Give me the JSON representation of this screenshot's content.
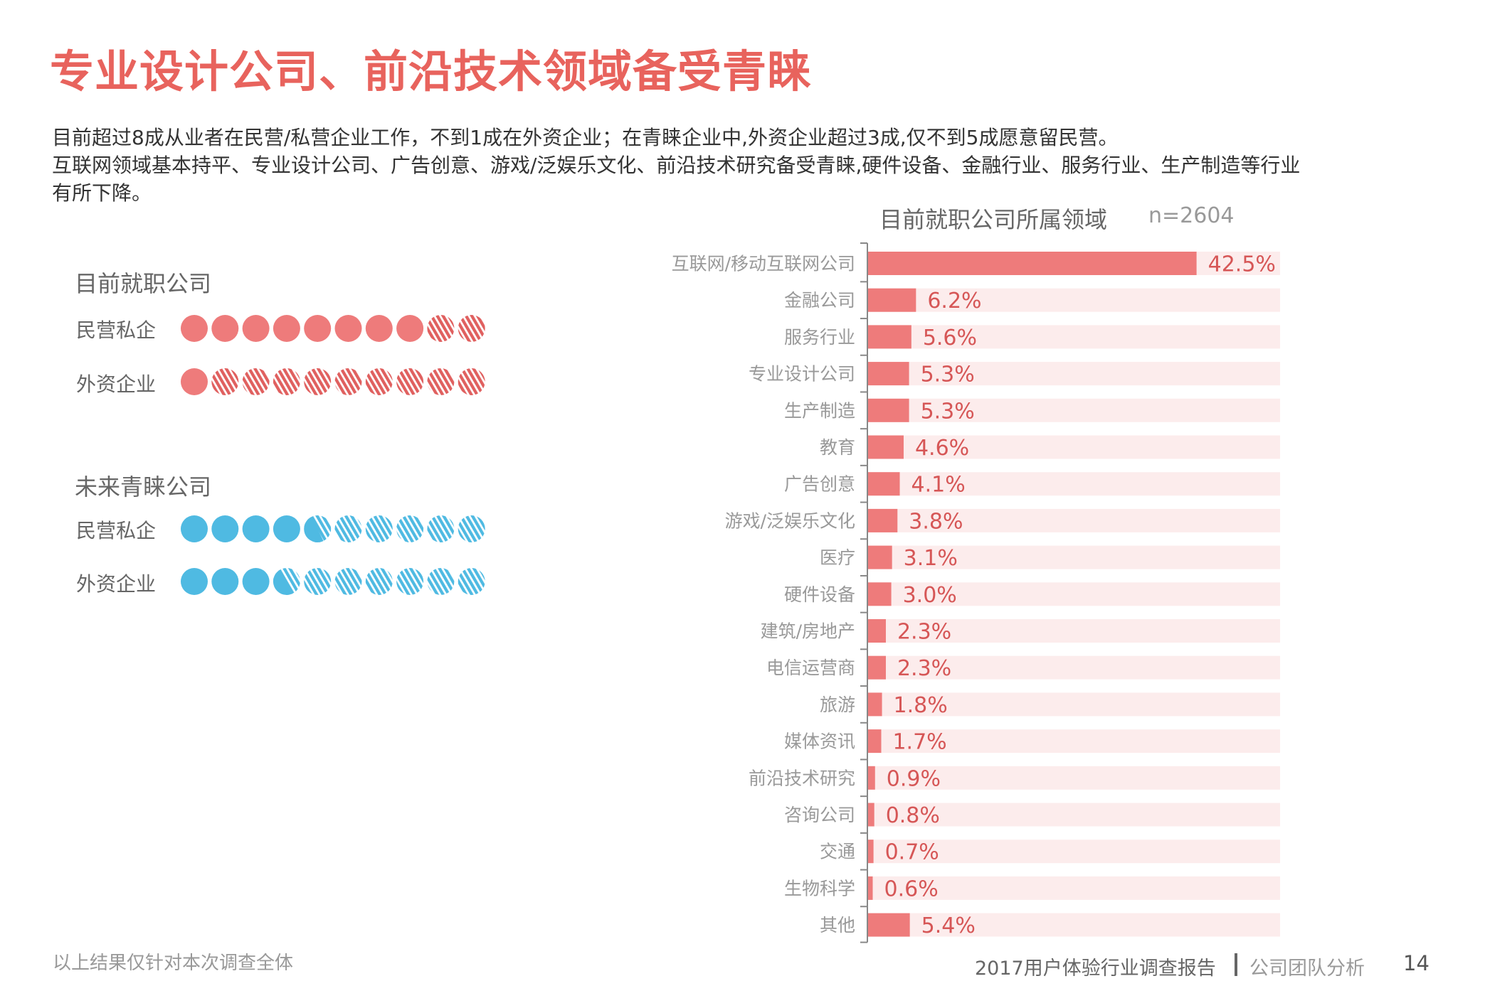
{
  "page": {
    "title": "专业设计公司、前沿技术领域备受青睐",
    "paragraph_lines": [
      "目前超过8成从业者在民营/私营企业工作，不到1成在外资企业；在青睐企业中,外资企业超过3成,仅不到5成愿意留民营。",
      "互联网领域基本持平、专业设计公司、广告创意、游戏/泛娱乐文化、前沿技术研究备受青睐,硬件设备、金融行业、服务行业、生产制造等行业",
      "有所下降。"
    ]
  },
  "colors": {
    "title": "#e8635d",
    "bar": "#ee7b7b",
    "track": "#fcecec",
    "bar_label": "#d65656",
    "dot_red": "#ee7b7b",
    "dot_red_stripe": "#e0605f",
    "dot_blue": "#4fbae2",
    "dot_blue_stripe": "#4fbae2"
  },
  "dot_panels": [
    {
      "title": "目前就职公司",
      "color_key": "red",
      "rows": [
        {
          "label": "民营私企",
          "filled": 8.0,
          "total": 10
        },
        {
          "label": "外资企业",
          "filled": 1.0,
          "total": 10
        }
      ]
    },
    {
      "title": "未来青睐公司",
      "color_key": "blue",
      "rows": [
        {
          "label": "民营私企",
          "filled": 4.4,
          "total": 10
        },
        {
          "label": "外资企业",
          "filled": 3.4,
          "total": 10
        }
      ]
    }
  ],
  "chart_data": {
    "type": "bar",
    "orientation": "horizontal",
    "title": "目前就职公司所属领域",
    "sample_note": "n=2604",
    "xlim": [
      0,
      53.4
    ],
    "grid": false,
    "categories": [
      "互联网/移动互联网公司",
      "金融公司",
      "服务行业",
      "专业设计公司",
      "生产制造",
      "教育",
      "广告创意",
      "游戏/泛娱乐文化",
      "医疗",
      "硬件设备",
      "建筑/房地产",
      "电信运营商",
      "旅游",
      "媒体资讯",
      "前沿技术研究",
      "咨询公司",
      "交通",
      "生物科学",
      "其他"
    ],
    "values": [
      42.5,
      6.2,
      5.6,
      5.3,
      5.3,
      4.6,
      4.1,
      3.8,
      3.1,
      3.0,
      2.3,
      2.3,
      1.8,
      1.7,
      0.9,
      0.8,
      0.7,
      0.6,
      5.4
    ],
    "value_labels": [
      "42.5%",
      "6.2%",
      "5.6%",
      "5.3%",
      "5.3%",
      "4.6%",
      "4.1%",
      "3.8%",
      "3.1%",
      "3.0%",
      "2.3%",
      "2.3%",
      "1.8%",
      "1.7%",
      "0.9%",
      "0.8%",
      "0.7%",
      "0.6%",
      "5.4%"
    ]
  },
  "footer": {
    "note": "以上结果仅针对本次调查全体",
    "report": "2017用户体验行业调查报告",
    "section": "公司团队分析",
    "page_number": "14"
  }
}
